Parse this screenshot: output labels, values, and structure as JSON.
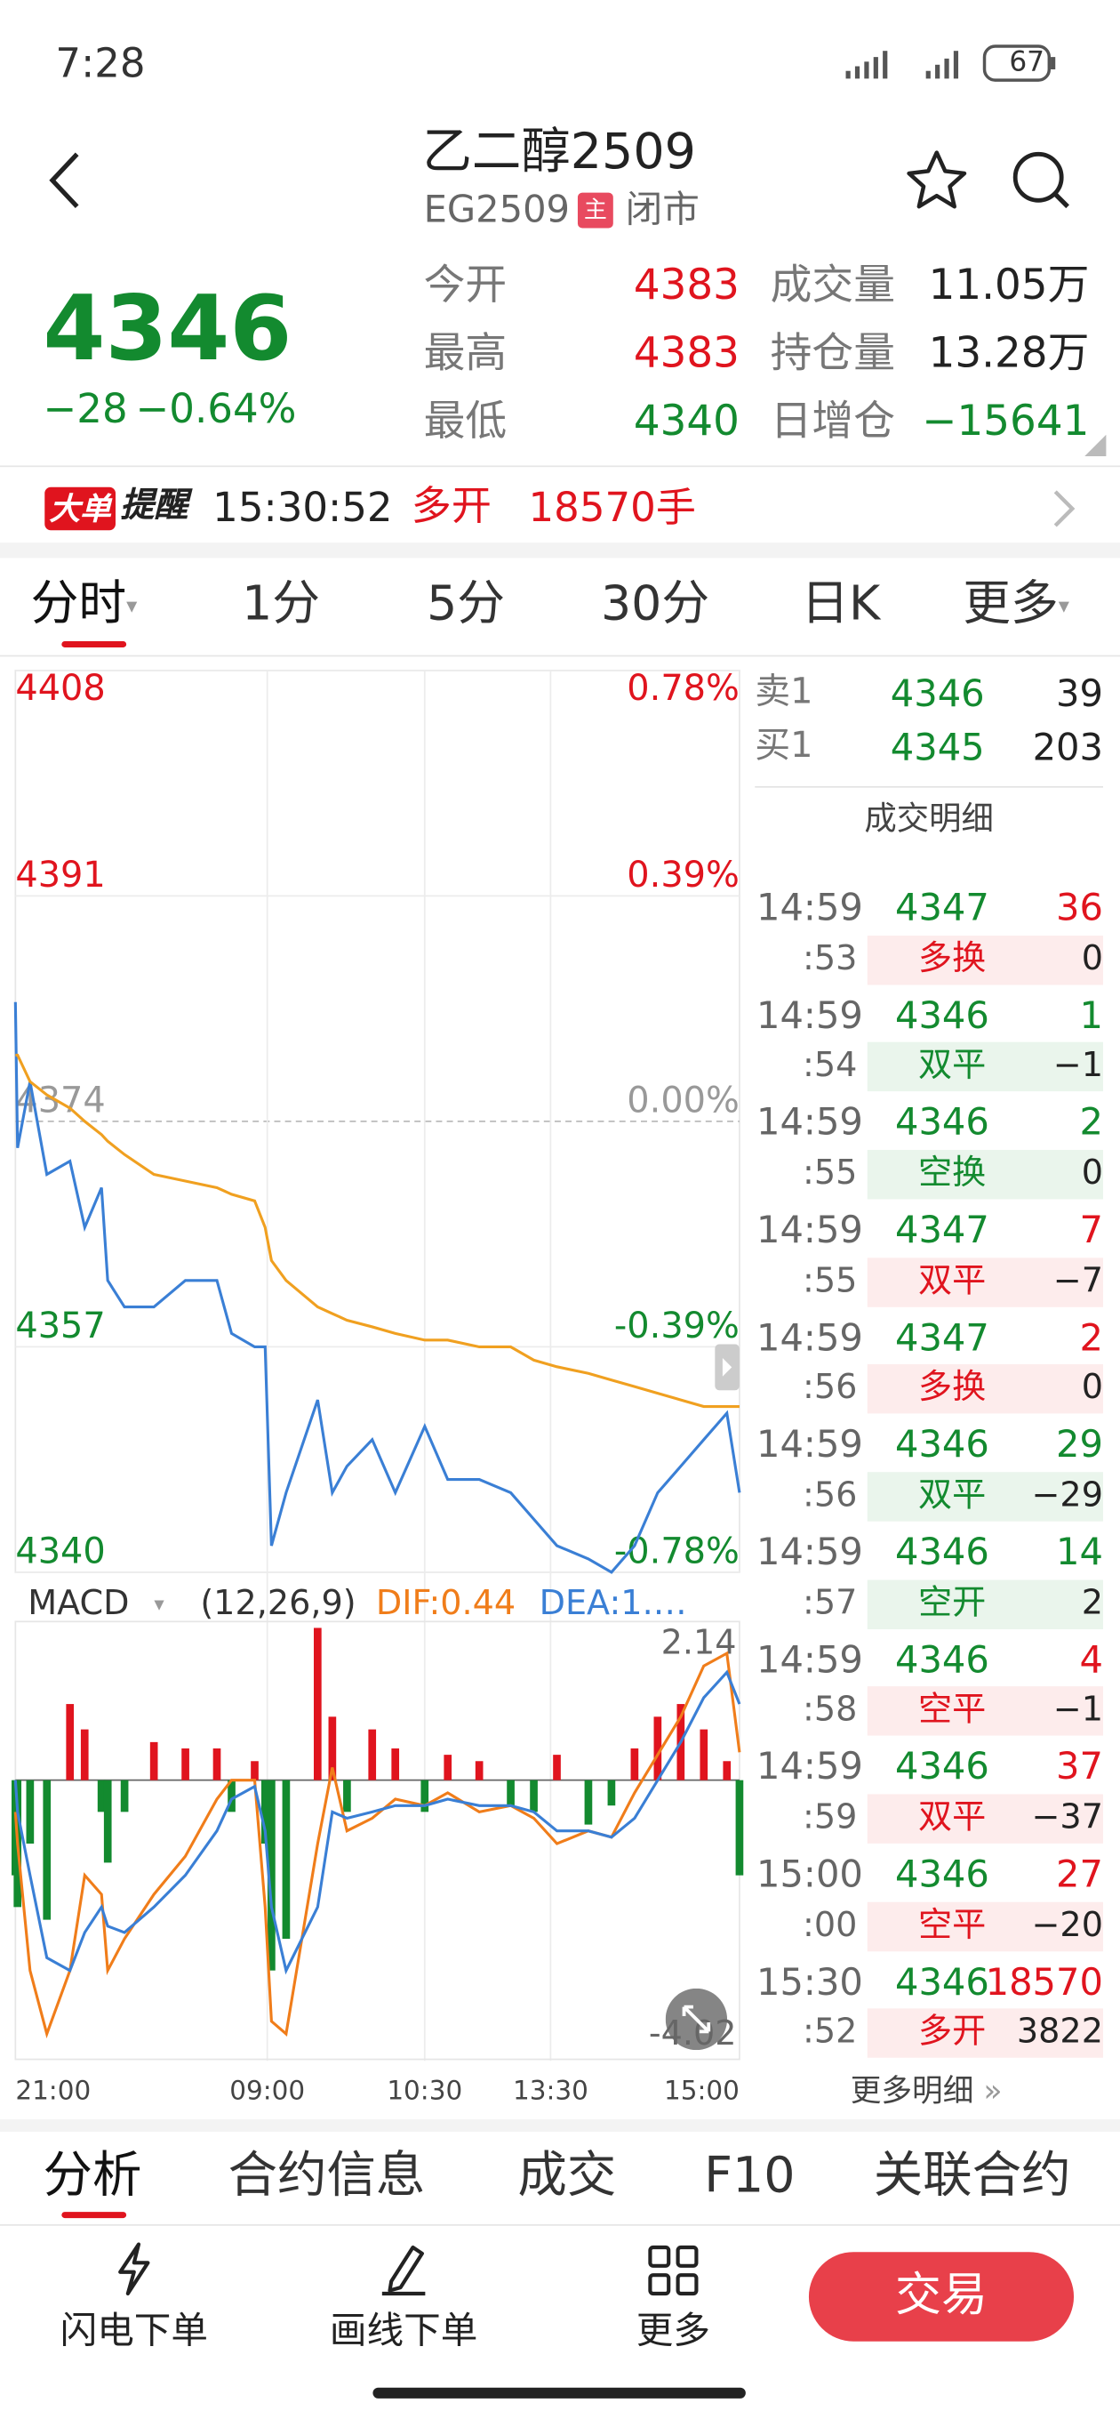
{
  "status_bar": {
    "time": "7:28",
    "battery": "67"
  },
  "header": {
    "title": "乙二醇2509",
    "code": "EG2509",
    "badge": "主",
    "market_status": "闭市"
  },
  "quote": {
    "price": "4346",
    "change": "−28",
    "change_pct": "−0.64%",
    "stats": [
      {
        "label": "今开",
        "value": "4383",
        "trend": "up"
      },
      {
        "label": "最高",
        "value": "4383",
        "trend": "up"
      },
      {
        "label": "最低",
        "value": "4340",
        "trend": "down"
      },
      {
        "label": "成交量",
        "value": "11.05万",
        "trend": "flat"
      },
      {
        "label": "持仓量",
        "value": "13.28万",
        "trend": "flat"
      },
      {
        "label": "日增仓",
        "value": "−15641",
        "trend": "down"
      }
    ]
  },
  "alert": {
    "tag": "大单",
    "tag2": "提醒",
    "time": "15:30:52",
    "action": "多开",
    "volume": "18570手"
  },
  "period_tabs": [
    "分时",
    "1分",
    "5分",
    "30分",
    "日K",
    "更多"
  ],
  "order_book": [
    {
      "label": "卖1",
      "price": "4346",
      "volume": "39"
    },
    {
      "label": "买1",
      "price": "4345",
      "volume": "203"
    }
  ],
  "trades_title": "成交明细",
  "trades": [
    {
      "time": "14:59",
      "price": "4347",
      "volume": "36",
      "second": ":53",
      "type": "多换",
      "change": "0",
      "side": "up"
    },
    {
      "time": "14:59",
      "price": "4346",
      "volume": "1",
      "second": ":54",
      "type": "双平",
      "change": "−1",
      "side": "down"
    },
    {
      "time": "14:59",
      "price": "4346",
      "volume": "2",
      "second": ":55",
      "type": "空换",
      "change": "0",
      "side": "down"
    },
    {
      "time": "14:59",
      "price": "4347",
      "volume": "7",
      "second": ":55",
      "type": "双平",
      "change": "−7",
      "side": "up"
    },
    {
      "time": "14:59",
      "price": "4347",
      "volume": "2",
      "second": ":56",
      "type": "多换",
      "change": "0",
      "side": "up"
    },
    {
      "time": "14:59",
      "price": "4346",
      "volume": "29",
      "second": ":56",
      "type": "双平",
      "change": "−29",
      "side": "down"
    },
    {
      "time": "14:59",
      "price": "4346",
      "volume": "14",
      "second": ":57",
      "type": "空开",
      "change": "2",
      "side": "down"
    },
    {
      "time": "14:59",
      "price": "4346",
      "volume": "4",
      "second": ":58",
      "type": "空平",
      "change": "−1",
      "side": "up"
    },
    {
      "time": "14:59",
      "price": "4346",
      "volume": "37",
      "second": ":59",
      "type": "双平",
      "change": "−37",
      "side": "up"
    },
    {
      "time": "15:00",
      "price": "4346",
      "volume": "27",
      "second": ":00",
      "type": "空平",
      "change": "−20",
      "side": "up"
    },
    {
      "time": "15:30",
      "price": "4346",
      "volume": "18570",
      "second": ":52",
      "type": "多开",
      "change": "3822",
      "side": "up"
    }
  ],
  "more_trades": "更多明细",
  "bottom_tabs": [
    "分析",
    "合约信息",
    "成交",
    "F10",
    "关联合约"
  ],
  "toolbar": [
    "闪电下单",
    "画线下单",
    "更多"
  ],
  "trade_button": "交易",
  "chart_data": [
    {
      "type": "line",
      "x": [
        0,
        1,
        7,
        15,
        26,
        33,
        41,
        44,
        52,
        66,
        81,
        96,
        103,
        114,
        119,
        122,
        129,
        144,
        151,
        158,
        170,
        181,
        195,
        206,
        221,
        236,
        247,
        258,
        273,
        284,
        295,
        306,
        317,
        328,
        339,
        345
      ],
      "xlim": [
        0,
        345
      ],
      "xticks": [
        {
          "value": 0,
          "label": "21:00"
        },
        {
          "value": 120,
          "label": "09:00"
        },
        {
          "value": 195,
          "label": "10:30"
        },
        {
          "value": 255,
          "label": "13:30"
        },
        {
          "value": 345,
          "label": "15:00"
        }
      ],
      "ylim": [
        4340,
        4408
      ],
      "yticks": [
        4408,
        4391,
        4374,
        4357,
        4340
      ],
      "y2lim": [
        -0.78,
        0.78
      ],
      "y2ticks": [
        {
          "value": 0.78,
          "label": "0.78%"
        },
        {
          "value": 0.39,
          "label": "0.39%"
        },
        {
          "value": 0,
          "label": "0.00%"
        },
        {
          "value": -0.39,
          "label": "-0.39%"
        },
        {
          "value": -0.78,
          "label": "-0.78%"
        }
      ],
      "grid": true,
      "series": [
        {
          "color": "#3a7fd5",
          "values": [
            4383,
            4372,
            4377,
            4370,
            4371,
            4366,
            4369,
            4362,
            4360,
            4360,
            4362,
            4362,
            4358,
            4357,
            4357,
            4342,
            4346,
            4353,
            4346,
            4348,
            4350,
            4346,
            4351,
            4347,
            4347,
            4346,
            4344,
            4342,
            4341,
            4340,
            4342,
            4346,
            4348,
            4350,
            4352,
            4346
          ]
        },
        {
          "color": "#f0a020",
          "values": [
            4379,
            4379,
            4377,
            4376,
            4375,
            4374,
            4373,
            4372.5,
            4371.5,
            4370,
            4369.5,
            4369,
            4368.5,
            4368,
            4366,
            4363.5,
            4362,
            4360,
            4359.5,
            4359,
            4358.5,
            4358,
            4357.5,
            4357.5,
            4357,
            4357,
            4356,
            4355.5,
            4355,
            4354.5,
            4354,
            4353.5,
            4353,
            4352.5,
            4352.5,
            4352.5
          ]
        }
      ]
    },
    {
      "type": "bar",
      "params": "(12,26,9)",
      "x": [
        0,
        1,
        7,
        15,
        26,
        33,
        41,
        44,
        52,
        66,
        81,
        96,
        103,
        114,
        119,
        122,
        129,
        144,
        151,
        158,
        170,
        181,
        195,
        206,
        221,
        236,
        247,
        258,
        273,
        284,
        295,
        306,
        317,
        328,
        339,
        345
      ],
      "xlim": [
        0,
        345
      ],
      "ylim": [
        -4.4,
        2.5
      ],
      "yticks": [
        2.14,
        -4.02
      ],
      "series": [
        {
          "name": "MACD",
          "color_up": "#e0141e",
          "color_down": "#138a2f",
          "values": [
            -1.5,
            -2,
            -1,
            -2.2,
            1.2,
            0.8,
            -0.5,
            -1.3,
            -0.5,
            0.6,
            0.5,
            0.5,
            -0.5,
            0.3,
            -1,
            -3,
            -2.5,
            2.4,
            1,
            -0.5,
            0.8,
            0.5,
            -0.5,
            0.4,
            0.3,
            -0.4,
            -0.5,
            0.4,
            -0.7,
            -0.4,
            0.5,
            1,
            1.2,
            0.8,
            0.3,
            -1.5
          ]
        },
        {
          "name": "DIF:0.44",
          "color": "#f07d1a",
          "values": [
            -0.5,
            -1,
            -3,
            -4,
            -3,
            -1.5,
            -1.8,
            -3,
            -2.5,
            -1.8,
            -1.2,
            -0.3,
            0,
            0,
            -2,
            -3.8,
            -4,
            -1,
            0.2,
            -0.8,
            -0.6,
            -0.3,
            -0.4,
            -0.2,
            -0.5,
            -0.4,
            -0.6,
            -1,
            -0.8,
            -0.9,
            -0.2,
            0.4,
            1,
            1.8,
            2,
            0.44
          ]
        },
        {
          "name": "DEA:1.…",
          "color": "#3a7fd5",
          "values": [
            0,
            -0.5,
            -1.5,
            -2.8,
            -3,
            -2.4,
            -2,
            -2.3,
            -2.4,
            -2,
            -1.5,
            -0.8,
            -0.3,
            -0.1,
            -0.8,
            -2,
            -3,
            -2,
            -0.5,
            -0.6,
            -0.5,
            -0.4,
            -0.4,
            -0.3,
            -0.4,
            -0.4,
            -0.5,
            -0.8,
            -0.8,
            -0.9,
            -0.6,
            0,
            0.6,
            1.3,
            1.7,
            1.2
          ]
        }
      ]
    }
  ]
}
